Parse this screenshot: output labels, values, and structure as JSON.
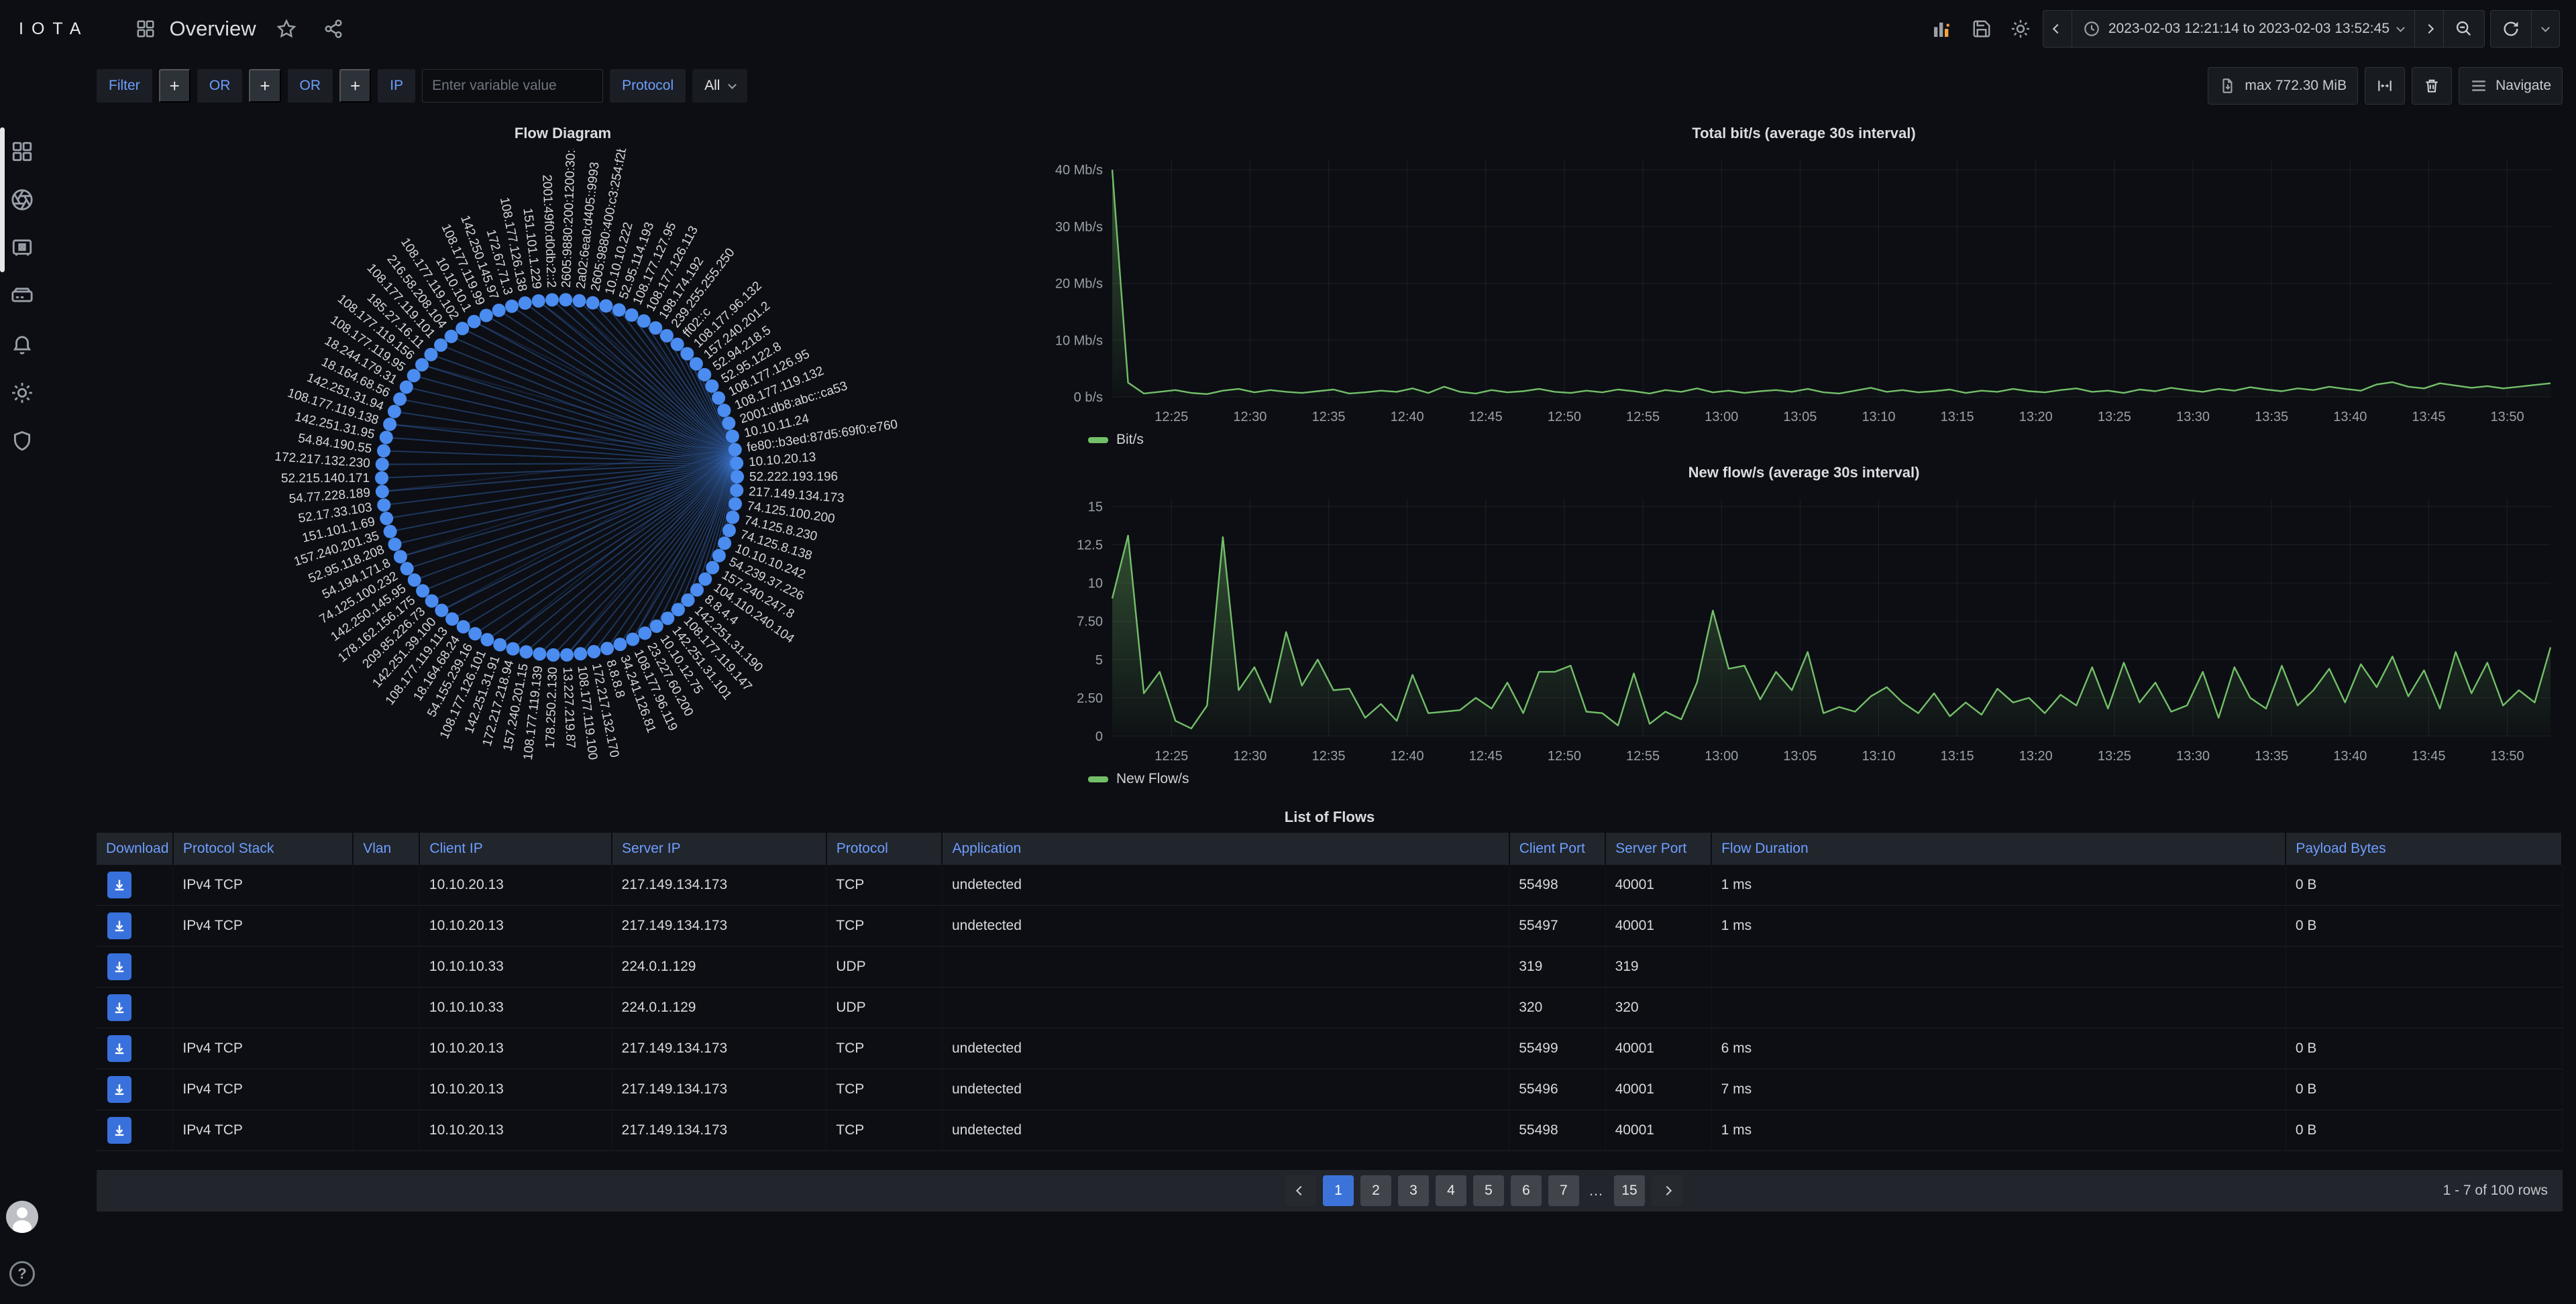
{
  "nav": {
    "logo": "IOTA",
    "title": "Overview",
    "time_range": "2023-02-03 12:21:14 to 2023-02-03 13:52:45"
  },
  "toolbar": {
    "filter_label": "Filter",
    "plus_label": "+",
    "or_label": "OR",
    "ip_label": "IP",
    "ip_placeholder": "Enter variable value",
    "ip_value": "",
    "protocol_label": "Protocol",
    "protocol_value": "All",
    "max_button_label": "max 772.30 MiB",
    "navigate_label": "Navigate"
  },
  "sidebar": {
    "icons": [
      "dashboards",
      "aperture",
      "vault",
      "storage",
      "alerting",
      "settings",
      "security"
    ],
    "help_glyph": "?"
  },
  "flow_diagram": {
    "title": "Flow Diagram",
    "node_color": "#4a8cf0",
    "link_color": "#3a6fc4",
    "hub_index": 19,
    "hub2_index": 18,
    "nodes": [
      "2605:9880:200:1200:30:5",
      "2a02:6ea0:d405::9993",
      "2605:9880:400:c3:254:f2bc",
      "10.10.10.222",
      "52.95.114.193",
      "108.177.127.95",
      "108.177.126.113",
      "198.174.192",
      "239.255.255.250",
      "ff02::c",
      "108.177.96.132",
      "157.240.201.2",
      "52.94.218.5",
      "52.95.122.8",
      "108.177.126.95",
      "108.177.119.132",
      "2001:db8:abc::ca53",
      "10.10.11.24",
      "fe80::b3ed:87d5:69f0:e760",
      "10.10.20.13",
      "52.222.193.196",
      "217.149.134.173",
      "74.125.100.200",
      "74.125.8.230",
      "74.125.8.138",
      "10.10.10.242",
      "54.239.37.226",
      "157.240.247.8",
      "104.110.240.104",
      "8.8.4.4",
      "142.251.31.190",
      "108.177.119.147",
      "142.251.31.101",
      "10.10.12.75",
      "23.227.60.200",
      "108.177.96.119",
      "34.241.126.81",
      "8.8.8.8",
      "172.217.132.170",
      "108.177.119.100",
      "13.227.219.87",
      "178.250.2.130",
      "108.177.119.139",
      "157.240.201.15",
      "172.217.218.94",
      "142.251.31.91",
      "108.177.126.101",
      "54.155.239.16",
      "18.164.68.24",
      "108.177.119.113",
      "142.251.39.100",
      "209.85.226.73",
      "178.162.156.175",
      "142.250.145.95",
      "74.125.100.232",
      "54.194.171.8",
      "52.95.118.208",
      "157.240.201.35",
      "151.101.1.69",
      "52.17.33.103",
      "54.77.228.189",
      "52.215.140.171",
      "172.217.132.230",
      "54.84.190.55",
      "142.251.31.95",
      "108.177.119.138",
      "142.251.31.94",
      "18.164.68.56",
      "18.244.179.31",
      "108.177.119.95",
      "108.177.119.156",
      "185.27.16.11",
      "108.177.119.101",
      "216.58.208.104",
      "108.177.119.102",
      "10.10.10.1",
      "108.177.119.99",
      "142.250.145.97",
      "172.67.71.3",
      "108.177.126.138",
      "151.101.1.229",
      "2001:49f0:d0db:2::2"
    ]
  },
  "chart_data": [
    {
      "type": "area",
      "title": "Total bit/s (average 30s interval)",
      "legend": "Bit/s",
      "color": "#73bf69",
      "grid": true,
      "legend_position": "bottom-left",
      "x_start": "12:21:14",
      "x_end": "13:52:45",
      "x_ticks": [
        "12:25",
        "12:30",
        "12:35",
        "12:40",
        "12:45",
        "12:50",
        "12:55",
        "13:00",
        "13:05",
        "13:10",
        "13:15",
        "13:20",
        "13:25",
        "13:30",
        "13:35",
        "13:40",
        "13:45",
        "13:50"
      ],
      "y_ticks": [
        {
          "v": 0,
          "label": "0 b/s"
        },
        {
          "v": 10,
          "label": "10 Mb/s"
        },
        {
          "v": 20,
          "label": "20 Mb/s"
        },
        {
          "v": 30,
          "label": "30 Mb/s"
        },
        {
          "v": 40,
          "label": "40 Mb/s"
        }
      ],
      "ylim": [
        0,
        41.8
      ],
      "unit": "Mb/s",
      "values": [
        40,
        2.5,
        0.6,
        0.9,
        1.2,
        0.7,
        0.5,
        1.1,
        1.4,
        0.8,
        1.2,
        0.9,
        0.7,
        1.0,
        1.3,
        0.6,
        0.8,
        1.1,
        0.9,
        1.5,
        0.7,
        1.8,
        0.9,
        0.6,
        1.2,
        0.8,
        1.0,
        1.4,
        0.9,
        0.7,
        1.1,
        0.8,
        1.3,
        1.0,
        0.6,
        1.2,
        0.9,
        1.5,
        0.8,
        1.1,
        0.7,
        1.0,
        1.2,
        0.9,
        1.4,
        0.8,
        0.6,
        1.1,
        1.6,
        0.9,
        1.2,
        0.8,
        1.0,
        1.3,
        0.7,
        1.1,
        0.9,
        1.4,
        1.0,
        0.8,
        1.2,
        1.5,
        0.9,
        1.1,
        0.7,
        1.3,
        1.0,
        1.6,
        1.2,
        0.9,
        1.4,
        1.1,
        1.7,
        1.3,
        1.0,
        1.5,
        1.2,
        1.8,
        1.4,
        1.1,
        2.2,
        2.6,
        1.8,
        1.5,
        2.4,
        2.0,
        1.6,
        1.9,
        1.5,
        1.8,
        2.1,
        2.4
      ]
    },
    {
      "type": "area",
      "title": "New flow/s (average 30s interval)",
      "legend": "New Flow/s",
      "color": "#73bf69",
      "grid": true,
      "legend_position": "bottom-left",
      "x_start": "12:21:14",
      "x_end": "13:52:45",
      "x_ticks": [
        "12:25",
        "12:30",
        "12:35",
        "12:40",
        "12:45",
        "12:50",
        "12:55",
        "13:00",
        "13:05",
        "13:10",
        "13:15",
        "13:20",
        "13:25",
        "13:30",
        "13:35",
        "13:40",
        "13:45",
        "13:50"
      ],
      "y_ticks": [
        {
          "v": 0,
          "label": "0"
        },
        {
          "v": 2.5,
          "label": "2.50"
        },
        {
          "v": 5,
          "label": "5"
        },
        {
          "v": 7.5,
          "label": "7.50"
        },
        {
          "v": 10,
          "label": "10"
        },
        {
          "v": 12.5,
          "label": "12.5"
        },
        {
          "v": 15,
          "label": "15"
        }
      ],
      "ylim": [
        0,
        15.5
      ],
      "unit": "flows/s",
      "values": [
        9.0,
        13.1,
        2.8,
        4.2,
        1.0,
        0.5,
        2.0,
        13.0,
        3.0,
        4.5,
        2.2,
        6.8,
        3.3,
        5.0,
        3.0,
        3.1,
        1.2,
        2.1,
        1.0,
        4.0,
        1.5,
        1.6,
        1.7,
        2.5,
        1.8,
        3.5,
        1.5,
        4.2,
        4.2,
        4.6,
        1.6,
        1.5,
        0.7,
        4.1,
        0.8,
        1.6,
        1.1,
        3.5,
        8.2,
        4.4,
        4.6,
        2.4,
        4.2,
        3.0,
        5.5,
        1.5,
        1.9,
        1.6,
        2.6,
        3.2,
        2.2,
        1.5,
        2.8,
        1.3,
        2.2,
        1.4,
        3.1,
        2.2,
        2.5,
        1.5,
        2.7,
        2.0,
        4.5,
        1.8,
        4.8,
        2.2,
        3.5,
        1.6,
        2.0,
        4.2,
        1.2,
        4.5,
        2.5,
        1.8,
        4.6,
        2.0,
        3.0,
        4.4,
        2.2,
        4.7,
        3.2,
        5.2,
        2.6,
        4.3,
        1.8,
        5.5,
        2.8,
        4.8,
        2.0,
        3.0,
        2.2,
        5.8
      ]
    }
  ],
  "table": {
    "title": "List of Flows",
    "columns": [
      "Download",
      "Protocol Stack",
      "Vlan",
      "Client IP",
      "Server IP",
      "Protocol",
      "Application",
      "Client Port",
      "Server Port",
      "Flow Duration",
      "Payload Bytes"
    ],
    "rows": [
      [
        "IPv4 TCP",
        "",
        "10.10.20.13",
        "217.149.134.173",
        "TCP",
        "undetected",
        "55498",
        "40001",
        "1 ms",
        "0 B"
      ],
      [
        "IPv4 TCP",
        "",
        "10.10.20.13",
        "217.149.134.173",
        "TCP",
        "undetected",
        "55497",
        "40001",
        "1 ms",
        "0 B"
      ],
      [
        "",
        "",
        "10.10.10.33",
        "224.0.1.129",
        "UDP",
        "",
        "319",
        "319",
        "",
        ""
      ],
      [
        "",
        "",
        "10.10.10.33",
        "224.0.1.129",
        "UDP",
        "",
        "320",
        "320",
        "",
        ""
      ],
      [
        "IPv4 TCP",
        "",
        "10.10.20.13",
        "217.149.134.173",
        "TCP",
        "undetected",
        "55499",
        "40001",
        "6 ms",
        "0 B"
      ],
      [
        "IPv4 TCP",
        "",
        "10.10.20.13",
        "217.149.134.173",
        "TCP",
        "undetected",
        "55496",
        "40001",
        "7 ms",
        "0 B"
      ],
      [
        "IPv4 TCP",
        "",
        "10.10.20.13",
        "217.149.134.173",
        "TCP",
        "undetected",
        "55498",
        "40001",
        "1 ms",
        "0 B"
      ]
    ]
  },
  "pagination": {
    "pages": [
      "1",
      "2",
      "3",
      "4",
      "5",
      "6",
      "7",
      "…",
      "15"
    ],
    "active": "1",
    "summary": "1 - 7 of 100 rows"
  }
}
